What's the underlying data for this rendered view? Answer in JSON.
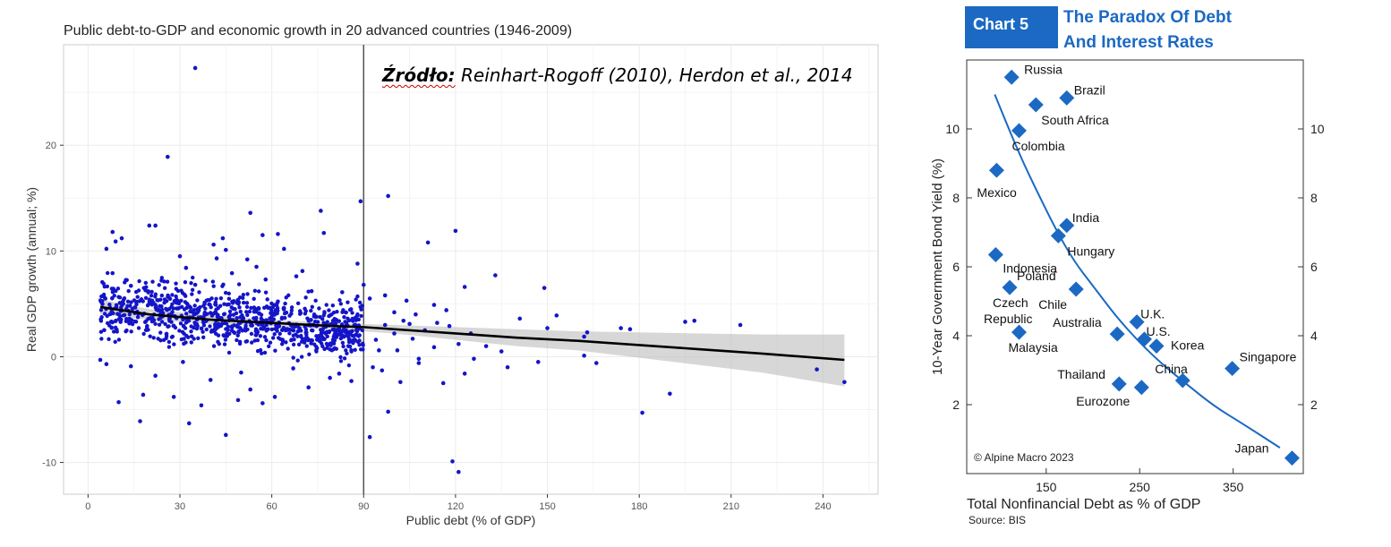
{
  "source_note": {
    "bold": "Źródło:",
    "text": " Reinhart-Rogoff (2010), Herdon et al., 2014"
  },
  "chart_data": [
    {
      "type": "scatter",
      "title": "Public debt-to-GDP and economic growth in 20 advanced countries (1946-2009)",
      "xlabel": "Public debt (% of GDP)",
      "ylabel": "Real GDP growth (annual; %)",
      "xlim": [
        -8,
        258
      ],
      "ylim": [
        -13,
        29.5
      ],
      "xticks": [
        0,
        30,
        60,
        90,
        120,
        150,
        180,
        210,
        240
      ],
      "yticks": [
        -10,
        0,
        10,
        20
      ],
      "grid": true,
      "reference_line_x": 90,
      "point_color": "#1414c8",
      "series": [
        {
          "points": [
            [
              35,
              27.3
            ],
            [
              26,
              18.9
            ],
            [
              89,
              14.7
            ],
            [
              98,
              15.2
            ],
            [
              53,
              13.6
            ],
            [
              76,
              13.8
            ],
            [
              20,
              12.4
            ],
            [
              22,
              12.4
            ],
            [
              120,
              11.9
            ],
            [
              8,
              11.8
            ],
            [
              11,
              11.2
            ],
            [
              57,
              11.5
            ],
            [
              77,
              11.7
            ],
            [
              44,
              11.2
            ],
            [
              41,
              10.6
            ],
            [
              64,
              10.2
            ],
            [
              111,
              10.8
            ],
            [
              62,
              11.6
            ],
            [
              6,
              10.2
            ],
            [
              9,
              10.9
            ],
            [
              88,
              8.8
            ],
            [
              30,
              9.5
            ],
            [
              42,
              9.3
            ],
            [
              55,
              8.5
            ],
            [
              97,
              5.8
            ],
            [
              100,
              4.2
            ],
            [
              104,
              5.3
            ],
            [
              113,
              4.9
            ],
            [
              123,
              6.6
            ],
            [
              133,
              7.7
            ],
            [
              149,
              6.5
            ],
            [
              153,
              3.9
            ],
            [
              150,
              2.7
            ],
            [
              141,
              3.6
            ],
            [
              162,
              1.9
            ],
            [
              163,
              2.3
            ],
            [
              174,
              2.7
            ],
            [
              177,
              2.6
            ],
            [
              195,
              3.3
            ],
            [
              198,
              3.4
            ],
            [
              213,
              3.0
            ],
            [
              105,
              3.1
            ],
            [
              118,
              2.9
            ],
            [
              125,
              2.2
            ],
            [
              130,
              1.0
            ],
            [
              135,
              0.5
            ],
            [
              121,
              1.2
            ],
            [
              108,
              -0.6
            ],
            [
              96,
              -1.3
            ],
            [
              102,
              -2.4
            ],
            [
              98,
              -5.2
            ],
            [
              92,
              -7.6
            ],
            [
              119,
              -9.9
            ],
            [
              121,
              -10.9
            ],
            [
              181,
              -5.3
            ],
            [
              190,
              -3.5
            ],
            [
              166,
              -0.6
            ],
            [
              162,
              0.1
            ],
            [
              147,
              -0.5
            ],
            [
              137,
              -1.0
            ],
            [
              123,
              -1.6
            ],
            [
              116,
              -2.5
            ],
            [
              238,
              -1.2
            ],
            [
              247,
              -2.4
            ],
            [
              17,
              -6.1
            ],
            [
              33,
              -6.3
            ],
            [
              45,
              -7.4
            ],
            [
              49,
              -4.1
            ],
            [
              57,
              -4.4
            ],
            [
              10,
              -4.3
            ],
            [
              18,
              -3.6
            ],
            [
              28,
              -3.8
            ],
            [
              37,
              -4.6
            ],
            [
              53,
              -3.1
            ],
            [
              61,
              -3.8
            ],
            [
              72,
              -2.9
            ],
            [
              82,
              -1.6
            ],
            [
              86,
              -2.3
            ],
            [
              6,
              -0.7
            ],
            [
              4,
              -0.3
            ],
            [
              14,
              -0.9
            ],
            [
              22,
              -1.8
            ],
            [
              31,
              -0.5
            ],
            [
              40,
              -2.2
            ],
            [
              50,
              -1.5
            ],
            [
              67,
              -1.1
            ],
            [
              79,
              -2.0
            ],
            [
              93,
              -1.0
            ],
            [
              80,
              1.6
            ],
            [
              85,
              1.0
            ],
            [
              95,
              0.6
            ],
            [
              94,
              1.6
            ],
            [
              100,
              2.2
            ],
            [
              106,
              1.7
            ],
            [
              110,
              2.5
            ],
            [
              114,
              3.2
            ],
            [
              103,
              3.4
            ],
            [
              107,
              4.0
            ],
            [
              117,
              4.4
            ],
            [
              97,
              3.0
            ],
            [
              101,
              0.6
            ],
            [
              108,
              -0.2
            ],
            [
              113,
              0.9
            ],
            [
              126,
              -0.2
            ],
            [
              8,
              7.9
            ],
            [
              14,
              6.7
            ],
            [
              24,
              7.2
            ],
            [
              35,
              6.8
            ],
            [
              47,
              7.9
            ],
            [
              58,
              7.3
            ],
            [
              68,
              7.6
            ],
            [
              73,
              6.2
            ],
            [
              83,
              6.1
            ],
            [
              90,
              6.8
            ],
            [
              92,
              5.5
            ],
            [
              45,
              10.1
            ],
            [
              52,
              9.2
            ],
            [
              32,
              8.4
            ],
            [
              70,
              8.1
            ]
          ]
        }
      ],
      "trend_line": {
        "x": [
          4,
          20,
          40,
          60,
          80,
          90,
          100,
          120,
          140,
          160,
          180,
          200,
          220,
          247
        ],
        "y": [
          4.7,
          4.0,
          3.5,
          3.2,
          2.9,
          2.8,
          2.6,
          2.2,
          1.8,
          1.5,
          1.1,
          0.7,
          0.3,
          -0.3
        ],
        "ci_upper": [
          5.4,
          4.5,
          3.9,
          3.5,
          3.2,
          3.1,
          3.0,
          2.8,
          2.6,
          2.4,
          2.3,
          2.2,
          2.1,
          2.1
        ],
        "ci_lower": [
          4.0,
          3.5,
          3.1,
          2.9,
          2.6,
          2.4,
          2.2,
          1.6,
          1.0,
          0.6,
          -0.1,
          -0.8,
          -1.5,
          -2.8
        ]
      },
      "cloud": {
        "x_range": [
          4,
          90
        ],
        "count": 900,
        "center_start": 4.6,
        "slope": -0.024,
        "sd": 2.3
      }
    },
    {
      "type": "scatter",
      "badge": "Chart 5",
      "title_line1": "The Paradox Of Debt",
      "title_line2": "And Interest Rates",
      "xlabel": "Total Nonfinancial Debt as % of GDP",
      "ylabel": "10-Year Government Bond Yield (%)",
      "xlim": [
        65,
        425
      ],
      "ylim": [
        0,
        12
      ],
      "xticks": [
        150,
        250,
        350
      ],
      "yticks": [
        2,
        4,
        6,
        8,
        10
      ],
      "copyright": "© Alpine Macro 2023",
      "source": "Source: BIS",
      "marker_color": "#1b69c3",
      "title_color": "#1b69c3",
      "points": [
        {
          "label": "Russia",
          "x": 113,
          "y": 11.5
        },
        {
          "label": "Brazil",
          "x": 172,
          "y": 10.9
        },
        {
          "label": "South Africa",
          "x": 139,
          "y": 10.7
        },
        {
          "label": "Colombia",
          "x": 121,
          "y": 9.95
        },
        {
          "label": "Mexico",
          "x": 97,
          "y": 8.8
        },
        {
          "label": "India",
          "x": 172,
          "y": 7.2
        },
        {
          "label": "Hungary",
          "x": 163,
          "y": 6.9
        },
        {
          "label": "Indonesia",
          "x": 96,
          "y": 6.35
        },
        {
          "label": "Czech Republic",
          "x": 111,
          "y": 5.4
        },
        {
          "label": "Poland",
          "x": 111,
          "y": 5.4
        },
        {
          "label": "Chile",
          "x": 182,
          "y": 5.35
        },
        {
          "label": "U.K.",
          "x": 247,
          "y": 4.4
        },
        {
          "label": "Australia",
          "x": 226,
          "y": 4.05
        },
        {
          "label": "U.S.",
          "x": 255,
          "y": 3.9
        },
        {
          "label": "Malaysia",
          "x": 121,
          "y": 4.1
        },
        {
          "label": "Korea",
          "x": 268,
          "y": 3.7
        },
        {
          "label": "Singapore",
          "x": 349,
          "y": 3.05
        },
        {
          "label": "Thailand",
          "x": 228,
          "y": 2.6
        },
        {
          "label": "China",
          "x": 296,
          "y": 2.7
        },
        {
          "label": "Eurozone",
          "x": 252,
          "y": 2.5
        },
        {
          "label": "Japan",
          "x": 413,
          "y": 0.45
        }
      ],
      "curve": {
        "x": [
          95,
          110,
          125,
          140,
          160,
          180,
          200,
          225,
          250,
          275,
          300,
          330,
          360,
          400
        ],
        "y": [
          11.0,
          10.0,
          9.05,
          8.2,
          7.1,
          6.15,
          5.45,
          4.55,
          3.8,
          3.15,
          2.6,
          1.95,
          1.45,
          0.75
        ]
      }
    }
  ]
}
